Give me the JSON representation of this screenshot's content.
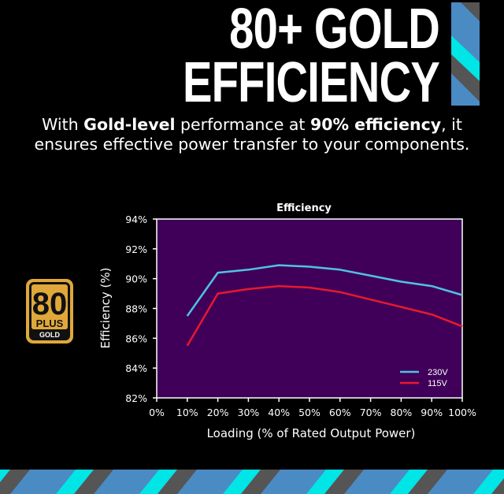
{
  "headline": {
    "line1": "80+ GOLD",
    "line2": "EFFICIENCY"
  },
  "subtitle": {
    "part1": "With ",
    "bold1": "Gold-level",
    "part2": " performance at ",
    "bold2": "90% efficiency",
    "part3": ", it ensures effective power transfer to your components."
  },
  "badge": {
    "number": "80",
    "plus": "PLUS",
    "tier": "GOLD"
  },
  "colors": {
    "plot_bg": "#40005a",
    "series_230": "#4fc3e0",
    "series_115": "#e8192c",
    "stripe_blue": "#4a8bc4",
    "stripe_cyan": "#00e5e5",
    "stripe_gray": "#555555",
    "badge_gold": "#e0a83a"
  },
  "chart_data": {
    "type": "line",
    "title": "Efficiency",
    "xlabel": "Loading (% of Rated Output Power)",
    "ylabel": "Efficiency (%)",
    "x": [
      10,
      20,
      30,
      40,
      50,
      60,
      70,
      80,
      90,
      100
    ],
    "x_tick_labels": [
      "0%",
      "10%",
      "20%",
      "30%",
      "40%",
      "50%",
      "60%",
      "70%",
      "80%",
      "90%",
      "100%"
    ],
    "y_tick_labels": [
      "94%",
      "92%",
      "90%",
      "88%",
      "86%",
      "84%",
      "82%"
    ],
    "xlim": [
      0,
      100
    ],
    "ylim": [
      82,
      94
    ],
    "grid": false,
    "legend_position": "lower right",
    "series": [
      {
        "name": "230V",
        "color": "#4fc3e0",
        "values": [
          87.5,
          90.4,
          90.6,
          90.9,
          90.8,
          90.6,
          90.2,
          89.8,
          89.5,
          88.9
        ]
      },
      {
        "name": "115V",
        "color": "#e8192c",
        "values": [
          85.5,
          89.0,
          89.3,
          89.5,
          89.4,
          89.1,
          88.6,
          88.1,
          87.6,
          86.8
        ]
      }
    ]
  }
}
